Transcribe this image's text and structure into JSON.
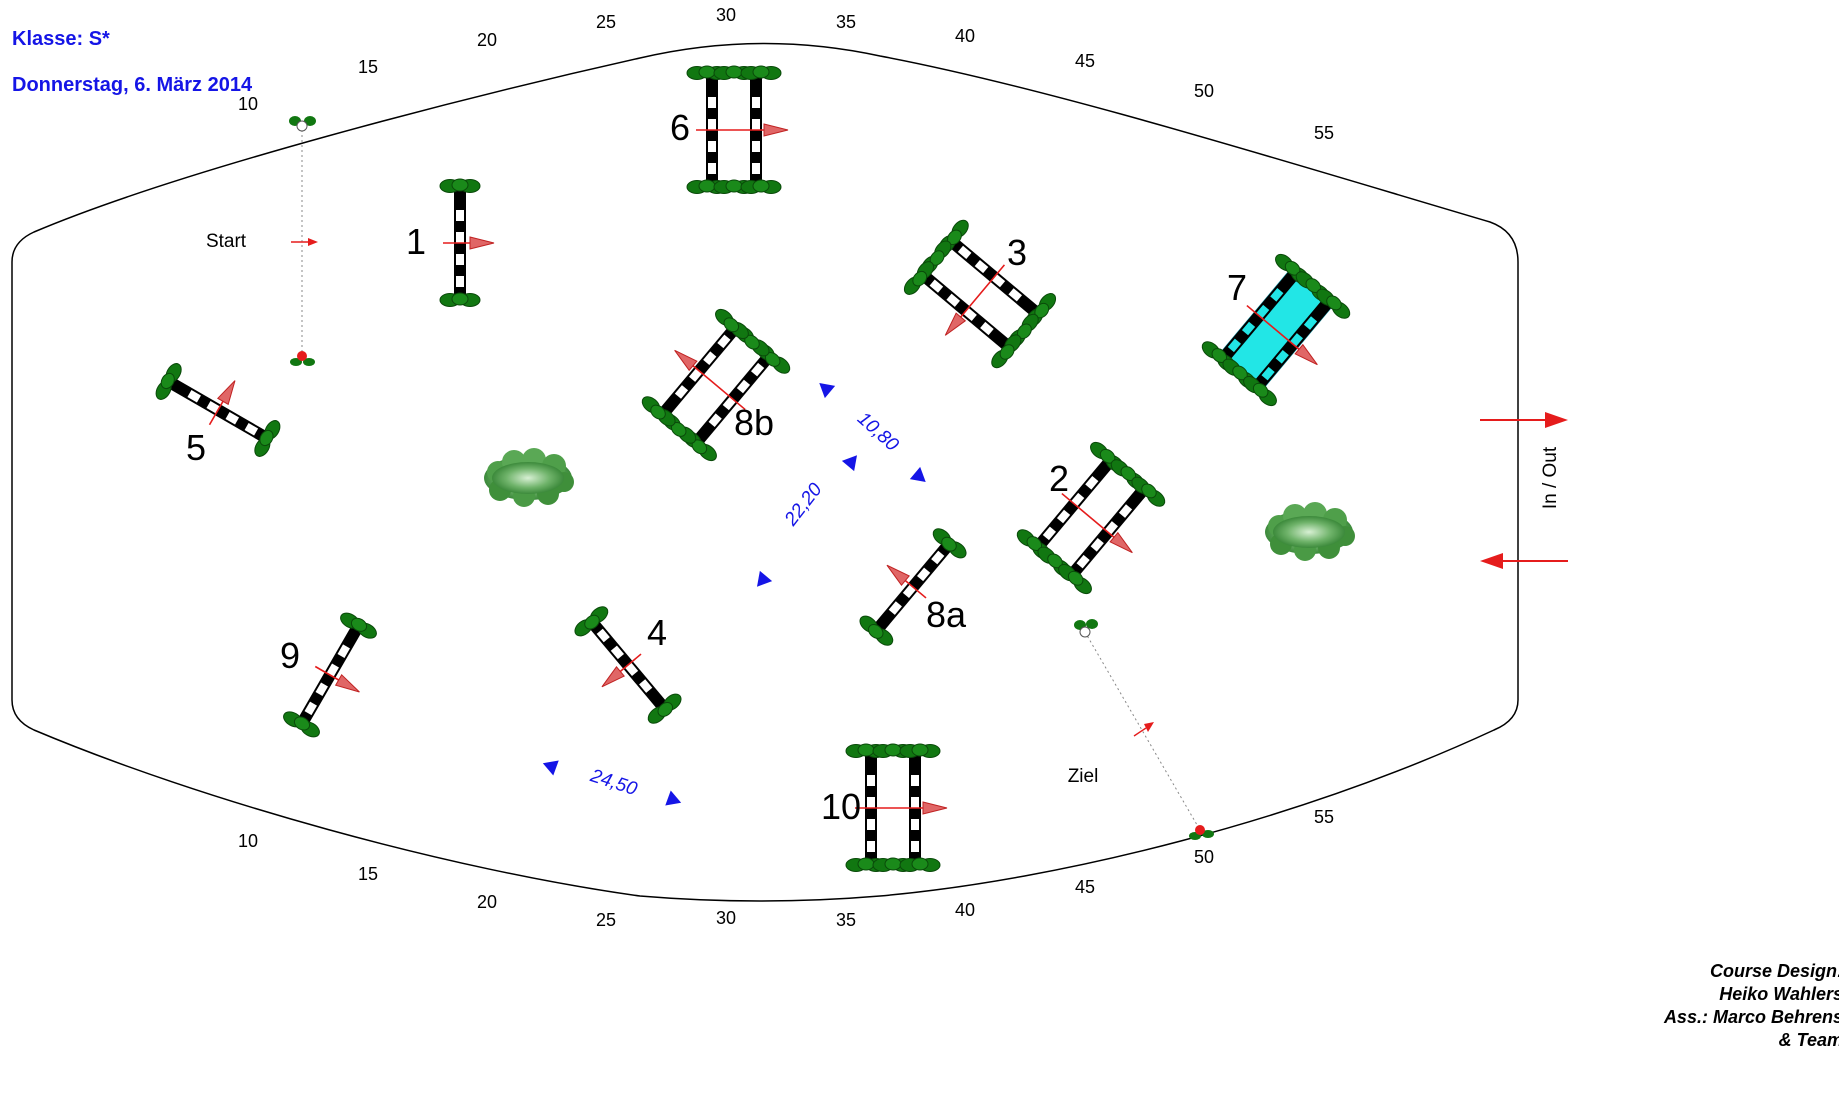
{
  "header": {
    "class_label": "Klasse: S*",
    "date_label": "Donnerstag, 6. März 2014"
  },
  "credits": {
    "line1": "Course Design:",
    "line2": "Heiko Wahlers",
    "line3": "Ass.: Marco Behrens",
    "line4": "& Team"
  },
  "scale_top": [
    "10",
    "15",
    "20",
    "25",
    "30",
    "35",
    "40",
    "45",
    "50",
    "55"
  ],
  "scale_bottom": [
    "10",
    "15",
    "20",
    "25",
    "30",
    "35",
    "40",
    "45",
    "50",
    "55"
  ],
  "labels": {
    "start": "Start",
    "finish": "Ziel",
    "in_out": "In / Out"
  },
  "obstacles": [
    {
      "number": "1",
      "kind": "vertical"
    },
    {
      "number": "2",
      "kind": "oxer"
    },
    {
      "number": "3",
      "kind": "oxer"
    },
    {
      "number": "4",
      "kind": "vertical"
    },
    {
      "number": "5",
      "kind": "vertical"
    },
    {
      "number": "6",
      "kind": "oxer"
    },
    {
      "number": "7",
      "kind": "water-oxer"
    },
    {
      "number": "8a",
      "kind": "vertical"
    },
    {
      "number": "8b",
      "kind": "oxer"
    },
    {
      "number": "9",
      "kind": "vertical"
    },
    {
      "number": "10",
      "kind": "oxer"
    }
  ],
  "distances": [
    "10,80",
    "22,20",
    "24,50"
  ],
  "colors": {
    "accent_blue": "#1515e6",
    "direction_red": "#e51c1c",
    "stand_green": "#117711",
    "water_cyan": "#22e6e6"
  }
}
